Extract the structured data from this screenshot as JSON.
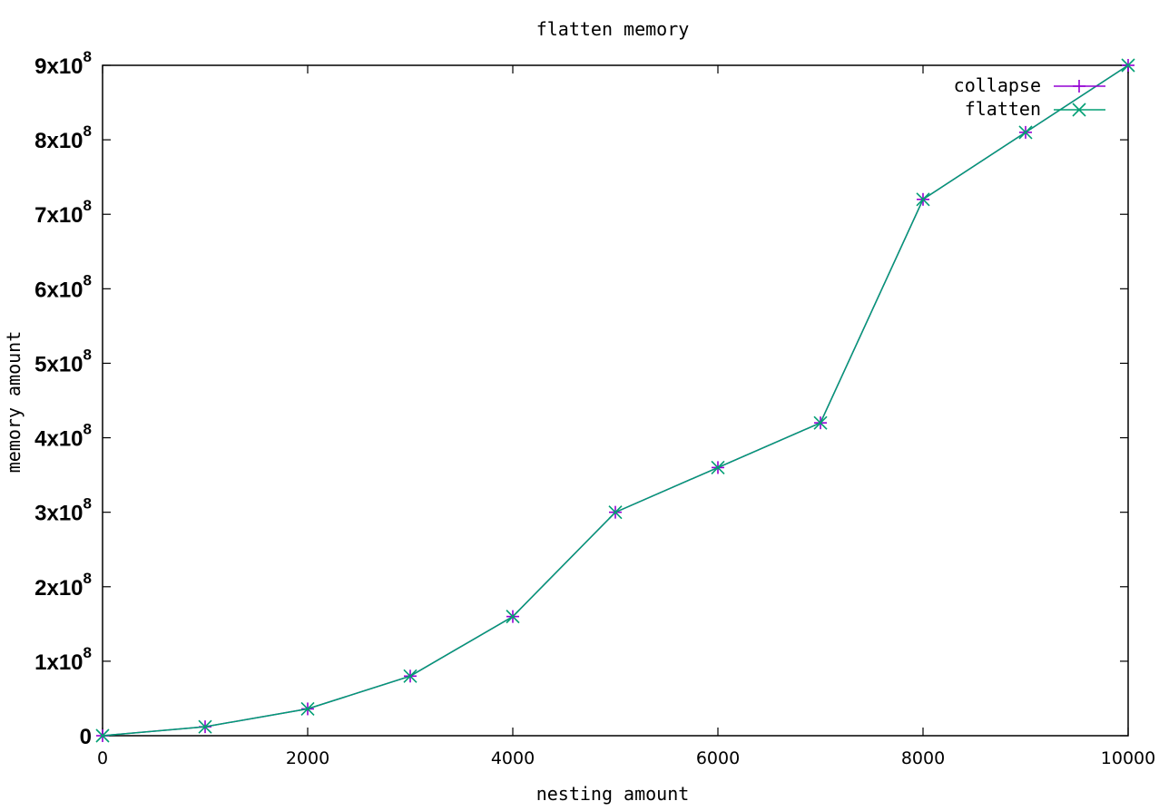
{
  "chart_data": {
    "type": "line",
    "title": "flatten memory",
    "xlabel": "nesting amount",
    "ylabel": "memory amount",
    "xlim": [
      0,
      10000
    ],
    "ylim": [
      0,
      900000000
    ],
    "x": [
      0,
      1000,
      2000,
      3000,
      4000,
      5000,
      6000,
      7000,
      8000,
      9000,
      10000
    ],
    "x_ticks": [
      "0",
      "2000",
      "4000",
      "6000",
      "8000",
      "10000"
    ],
    "x_tick_values": [
      0,
      2000,
      4000,
      6000,
      8000,
      10000
    ],
    "y_ticks": [
      {
        "value": 0,
        "mant": "0",
        "exp": ""
      },
      {
        "value": 100000000,
        "mant": "1x10",
        "exp": "8"
      },
      {
        "value": 200000000,
        "mant": "2x10",
        "exp": "8"
      },
      {
        "value": 300000000,
        "mant": "3x10",
        "exp": "8"
      },
      {
        "value": 400000000,
        "mant": "4x10",
        "exp": "8"
      },
      {
        "value": 500000000,
        "mant": "5x10",
        "exp": "8"
      },
      {
        "value": 600000000,
        "mant": "6x10",
        "exp": "8"
      },
      {
        "value": 700000000,
        "mant": "7x10",
        "exp": "8"
      },
      {
        "value": 800000000,
        "mant": "8x10",
        "exp": "8"
      },
      {
        "value": 900000000,
        "mant": "9x10",
        "exp": "8"
      }
    ],
    "series": [
      {
        "name": "collapse",
        "color": "#9400d3",
        "marker": "plus",
        "values": [
          0,
          12000000,
          36000000,
          80000000,
          160000000,
          300000000,
          360000000,
          420000000,
          720000000,
          810000000,
          900000000
        ]
      },
      {
        "name": "flatten",
        "color": "#009e73",
        "marker": "cross",
        "values": [
          0,
          12000000,
          36000000,
          80000000,
          160000000,
          300000000,
          360000000,
          420000000,
          720000000,
          810000000,
          900000000
        ]
      }
    ],
    "grid": false,
    "legend_position": "top-right"
  }
}
